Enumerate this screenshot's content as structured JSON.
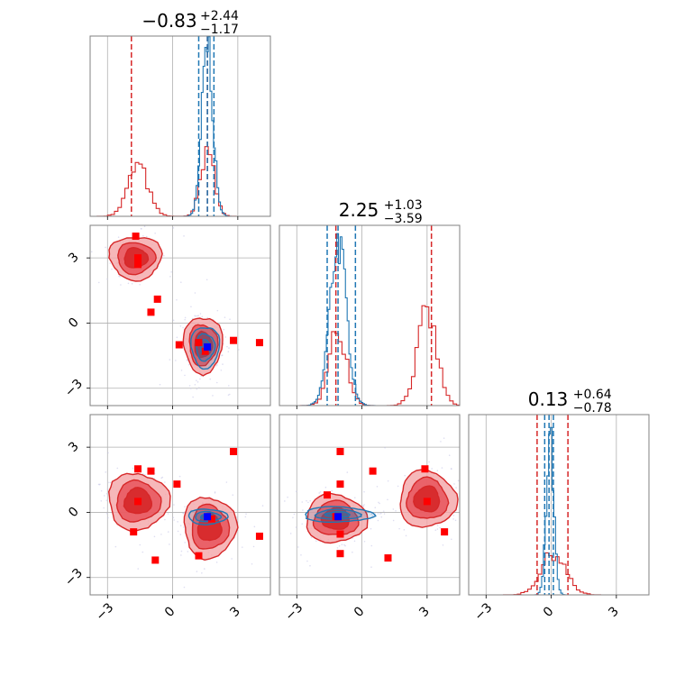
{
  "chart_data": {
    "type": "corner",
    "axis_range": [
      -3.8,
      4.5
    ],
    "ticks": [
      -3,
      0,
      3
    ],
    "tick_labels": [
      "−3",
      "0",
      "3"
    ],
    "grid": true,
    "colors": {
      "blue": "#1f77b4",
      "red": "#d62728",
      "marker_red": "#ff0000",
      "marker_blue": "#0000ff",
      "frame": "#808080",
      "grid": "#b0b0b0"
    },
    "titles": [
      {
        "main": "−0.83",
        "sup": "+2.44",
        "sub": "−1.17"
      },
      {
        "main": "2.25",
        "sup": "+1.03",
        "sub": "−3.59"
      },
      {
        "main": "0.13",
        "sup": "+0.64",
        "sub": "−0.78"
      }
    ],
    "diagonal": [
      {
        "param": 0,
        "blue_quantiles": [
          1.2,
          1.6,
          1.9
        ],
        "red_quantiles": [
          -1.9,
          1.6
        ],
        "blue_modes": [
          {
            "mu": 1.6,
            "sigma": 0.25,
            "peak": 0.96
          }
        ],
        "red_modes": [
          {
            "mu": -1.6,
            "sigma": 0.45,
            "peak": 0.28
          },
          {
            "mu": 1.6,
            "sigma": 0.3,
            "peak": 0.38
          }
        ]
      },
      {
        "param": 1,
        "blue_quantiles": [
          -1.6,
          -1.1,
          -0.3
        ],
        "red_quantiles": [
          -1.2,
          3.2
        ],
        "blue_modes": [
          {
            "mu": -1.1,
            "sigma": 0.38,
            "peak": 0.91
          }
        ],
        "red_modes": [
          {
            "mu": -1.1,
            "sigma": 0.4,
            "peak": 0.42
          },
          {
            "mu": 3.0,
            "sigma": 0.45,
            "peak": 0.5
          }
        ]
      },
      {
        "param": 2,
        "blue_quantiles": [
          -0.3,
          -0.1,
          0.1
        ],
        "red_quantiles": [
          -0.65,
          0.77
        ],
        "blue_modes": [
          {
            "mu": -0.05,
            "sigma": 0.17,
            "peak": 0.85
          }
        ],
        "red_modes": [
          {
            "mu": 0.1,
            "sigma": 0.55,
            "peak": 0.23
          }
        ]
      }
    ],
    "pairs": [
      {
        "x_param": 0,
        "y_param": 1,
        "red_blobs": [
          {
            "cx": -1.7,
            "cy": 3.0,
            "rx": 1.2,
            "ry": 1.0
          },
          {
            "cx": 1.4,
            "cy": -1.0,
            "rx": 0.9,
            "ry": 1.3
          }
        ],
        "blue_blobs": [
          {
            "cx": 1.5,
            "cy": -1.1,
            "rx": 0.65,
            "ry": 0.95
          }
        ],
        "red_markers": [
          [
            -1.7,
            4.0
          ],
          [
            -1.6,
            3.0
          ],
          [
            -1.6,
            2.7
          ],
          [
            -0.7,
            1.1
          ],
          [
            -1.0,
            0.5
          ],
          [
            0.3,
            -1.0
          ],
          [
            1.2,
            -0.9
          ],
          [
            1.5,
            -1.3
          ],
          [
            2.8,
            -0.8
          ],
          [
            4.0,
            -0.9
          ]
        ],
        "blue_marker": [
          1.6,
          -1.1
        ]
      },
      {
        "x_param": 0,
        "y_param": 2,
        "red_blobs": [
          {
            "cx": -1.6,
            "cy": 0.5,
            "rx": 1.4,
            "ry": 1.3
          },
          {
            "cx": 1.7,
            "cy": -0.7,
            "rx": 1.2,
            "ry": 1.4
          }
        ],
        "blue_blobs": [
          {
            "cx": 1.6,
            "cy": -0.2,
            "rx": 0.9,
            "ry": 0.35
          }
        ],
        "red_markers": [
          [
            -1.6,
            2.0
          ],
          [
            -1.0,
            1.9
          ],
          [
            0.2,
            1.3
          ],
          [
            -1.6,
            0.5
          ],
          [
            -1.8,
            -0.9
          ],
          [
            -0.8,
            -2.2
          ],
          [
            1.2,
            -2.0
          ],
          [
            2.8,
            2.8
          ],
          [
            4.0,
            -1.1
          ],
          [
            1.8,
            -0.3
          ]
        ],
        "blue_marker": [
          1.6,
          -0.2
        ]
      },
      {
        "x_param": 1,
        "y_param": 2,
        "red_blobs": [
          {
            "cx": -1.2,
            "cy": -0.3,
            "rx": 1.4,
            "ry": 1.1
          },
          {
            "cx": 3.0,
            "cy": 0.6,
            "rx": 1.3,
            "ry": 1.3
          }
        ],
        "blue_blobs": [
          {
            "cx": -1.1,
            "cy": -0.1,
            "rx": 1.6,
            "ry": 0.35
          }
        ],
        "red_markers": [
          [
            -1.0,
            2.8
          ],
          [
            0.5,
            1.9
          ],
          [
            -1.0,
            1.3
          ],
          [
            -1.6,
            0.8
          ],
          [
            -1.2,
            -0.2
          ],
          [
            -1.0,
            -1.0
          ],
          [
            -1.0,
            -1.9
          ],
          [
            1.2,
            -2.1
          ],
          [
            2.9,
            2.0
          ],
          [
            3.0,
            0.5
          ],
          [
            3.8,
            -0.9
          ]
        ],
        "blue_marker": [
          -1.1,
          -0.2
        ]
      }
    ]
  }
}
